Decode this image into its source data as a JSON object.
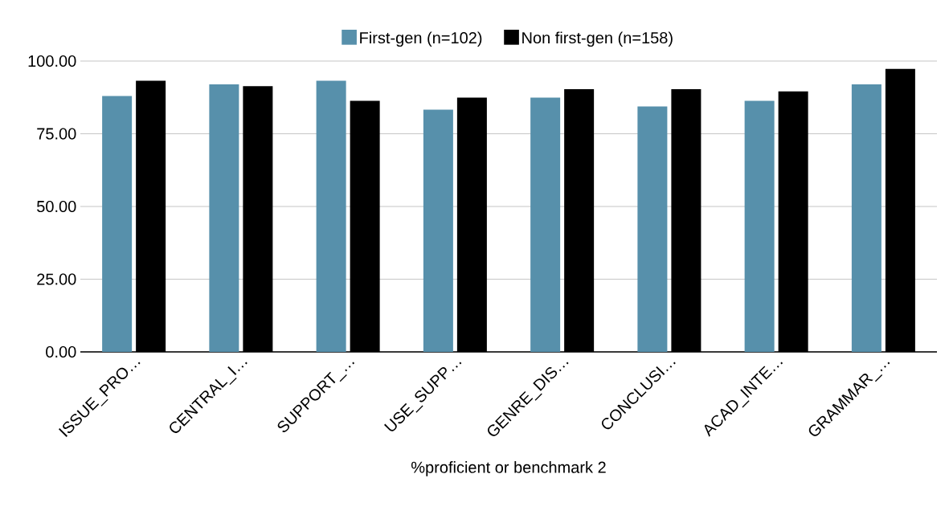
{
  "chart_data": {
    "type": "bar",
    "xlabel": "%proficient or benchmark 2",
    "categories": [
      "ISSUE_PRO…",
      "CENTRAL_I…",
      "SUPPORT_…",
      "USE_SUPP…",
      "GENRE_DIS…",
      "CONCLUSI…",
      "ACAD_INTE…",
      "GRAMMAR_…"
    ],
    "series": [
      {
        "name": "First-gen (n=102)",
        "color": "#5790ab",
        "values": [
          88.0,
          92.0,
          93.2,
          83.3,
          87.4,
          84.4,
          86.3,
          92.0
        ]
      },
      {
        "name": "Non first-gen (n=158)",
        "color": "#000000",
        "values": [
          93.2,
          91.4,
          86.3,
          87.4,
          90.3,
          90.3,
          89.6,
          97.3
        ]
      }
    ],
    "ylim": [
      0,
      100
    ],
    "yticks": [
      {
        "value": 0,
        "label": "0.00"
      },
      {
        "value": 25,
        "label": "25.00"
      },
      {
        "value": 50,
        "label": "50.00"
      },
      {
        "value": 75,
        "label": "75.00"
      },
      {
        "value": 100,
        "label": "100.00"
      }
    ],
    "grid": "y",
    "legend": "top"
  }
}
